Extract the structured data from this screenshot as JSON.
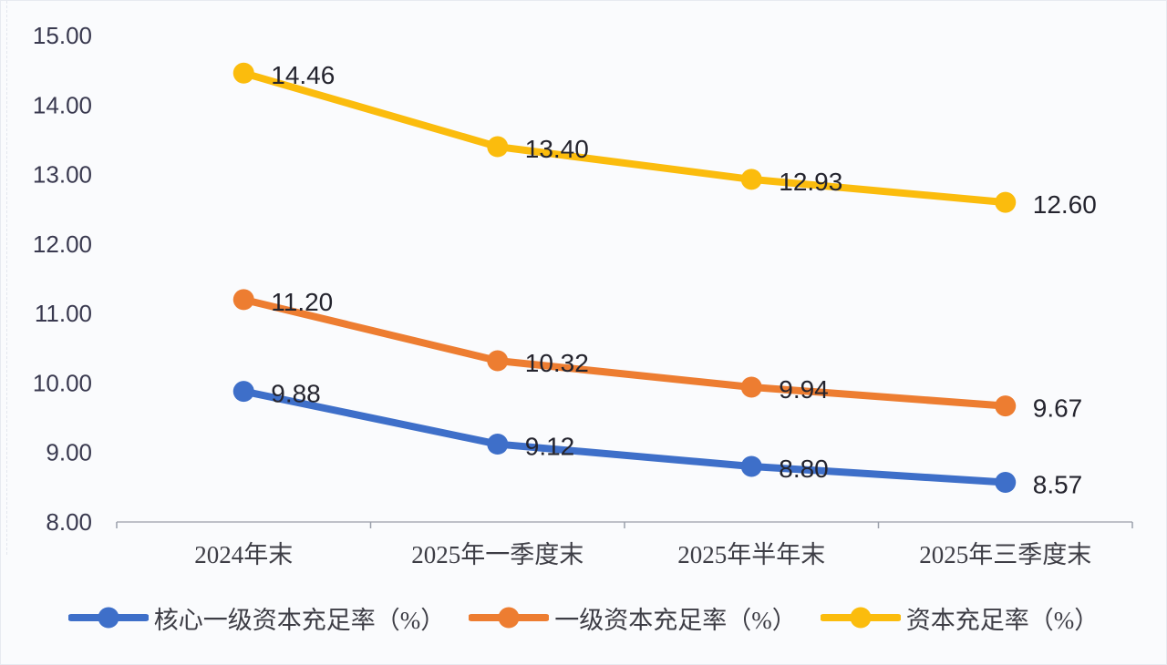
{
  "chart_data": {
    "type": "line",
    "categories": [
      "2024年末",
      "2025年一季度末",
      "2025年半年末",
      "2025年三季度末"
    ],
    "series": [
      {
        "key": "core-tier1-capital-ratio",
        "name": "核心一级资本充足率（%）",
        "color": "#3E6FC9",
        "values": [
          9.88,
          9.12,
          8.8,
          8.57
        ]
      },
      {
        "key": "tier1-capital-ratio",
        "name": "一级资本充足率（%）",
        "color": "#ED7D31",
        "values": [
          11.2,
          10.32,
          9.94,
          9.67
        ]
      },
      {
        "key": "capital-adequacy-ratio",
        "name": "资本充足率（%）",
        "color": "#FBBC0D",
        "values": [
          14.46,
          13.4,
          12.93,
          12.6
        ]
      }
    ],
    "title": "",
    "xlabel": "",
    "ylabel": "",
    "ylim": [
      8,
      15
    ],
    "ytick_labels": [
      "8.00",
      "9.00",
      "10.00",
      "11.00",
      "12.00",
      "13.00",
      "14.00",
      "15.00"
    ],
    "grid": false,
    "data_labels_decimals": 2,
    "legend_position": "bottom"
  },
  "colors": {
    "background": "#fafbfd",
    "axis_line": "#a9adb6",
    "tick_mark": "#9aa0ab",
    "ytick_text": "#39394f",
    "xtick_text": "#3d3d45",
    "data_label_text": "#24242e",
    "series_blue": "#3E6FC9",
    "series_orange": "#ED7D31",
    "series_gold": "#FBBC0D"
  }
}
